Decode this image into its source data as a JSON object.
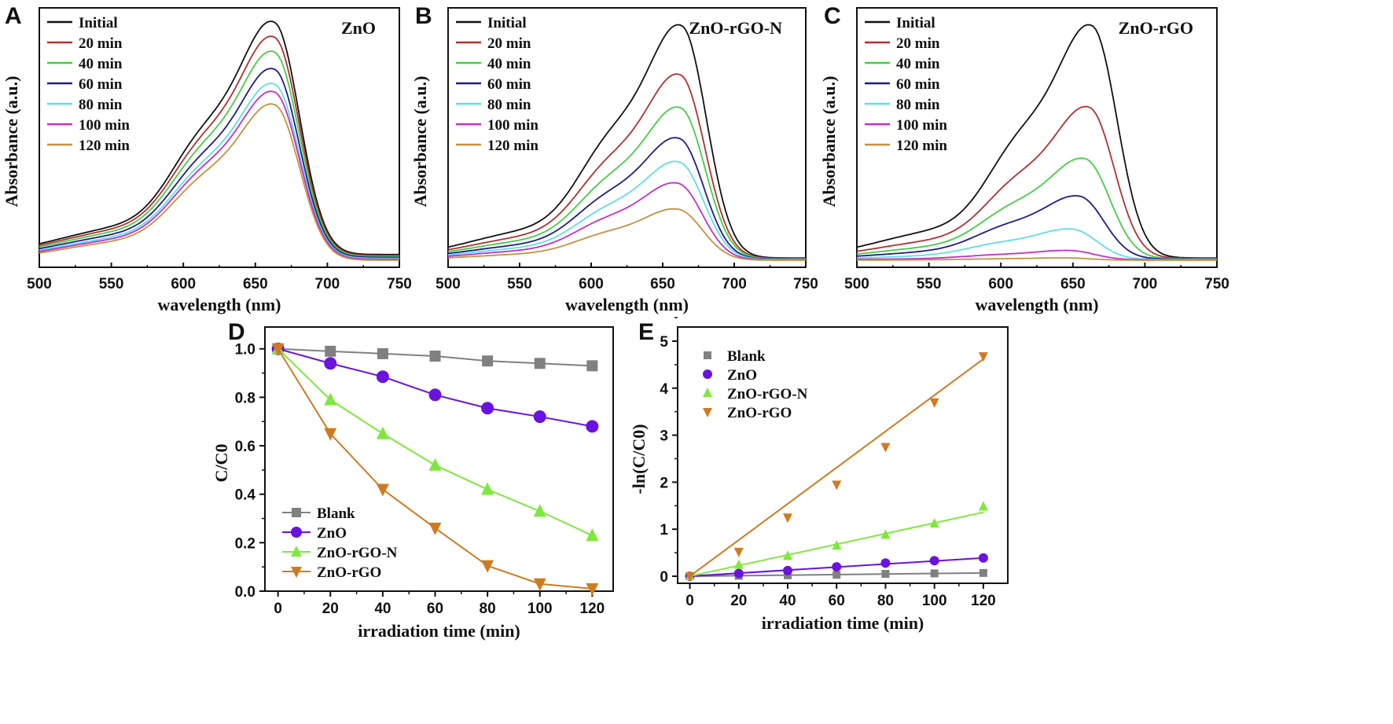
{
  "chart_data": [
    {
      "panel": "A",
      "type": "line",
      "title": "ZnO",
      "xlabel": "wavelength (nm)",
      "ylabel": "Absorbance (a.u.)",
      "xlim": [
        500,
        750
      ],
      "xticks": [
        500,
        550,
        600,
        650,
        700,
        750
      ],
      "ylim": [
        0,
        1.1
      ],
      "legend_position": "top-left",
      "series": [
        {
          "name": "Initial",
          "color": "#111111",
          "peak_absorbance": 1.0,
          "peak_nm": 664
        },
        {
          "name": "20  min",
          "color": "#b03030",
          "peak_absorbance": 0.94,
          "peak_nm": 664
        },
        {
          "name": "40  min",
          "color": "#46cc46",
          "peak_absorbance": 0.88,
          "peak_nm": 664
        },
        {
          "name": "60  min",
          "color": "#1c1c8c",
          "peak_absorbance": 0.81,
          "peak_nm": 664
        },
        {
          "name": "80  min",
          "color": "#5fdde6",
          "peak_absorbance": 0.75,
          "peak_nm": 664
        },
        {
          "name": "100 min",
          "color": "#c030c8",
          "peak_absorbance": 0.72,
          "peak_nm": 664
        },
        {
          "name": "120 min",
          "color": "#c89040",
          "peak_absorbance": 0.67,
          "peak_nm": 664
        }
      ]
    },
    {
      "panel": "B",
      "type": "line",
      "title": "ZnO-rGO-N",
      "xlabel": "wavelength (nm)",
      "ylabel": "Absorbance (a.u.)",
      "xlim": [
        500,
        750
      ],
      "xticks": [
        500,
        550,
        600,
        650,
        700,
        750
      ],
      "ylim": [
        0,
        1.1
      ],
      "legend_position": "top-left",
      "series": [
        {
          "name": "Initial",
          "color": "#111111",
          "peak_absorbance": 1.0,
          "peak_nm": 664
        },
        {
          "name": "20  min",
          "color": "#b03030",
          "peak_absorbance": 0.79,
          "peak_nm": 663
        },
        {
          "name": "40  min",
          "color": "#46cc46",
          "peak_absorbance": 0.65,
          "peak_nm": 663
        },
        {
          "name": "60  min",
          "color": "#1c1c8c",
          "peak_absorbance": 0.52,
          "peak_nm": 662
        },
        {
          "name": "80  min",
          "color": "#5fdde6",
          "peak_absorbance": 0.42,
          "peak_nm": 662
        },
        {
          "name": "100 min",
          "color": "#c030c8",
          "peak_absorbance": 0.33,
          "peak_nm": 661
        },
        {
          "name": "120 min",
          "color": "#c89040",
          "peak_absorbance": 0.22,
          "peak_nm": 661
        }
      ]
    },
    {
      "panel": "C",
      "type": "line",
      "title": "ZnO-rGO",
      "xlabel": "wavelength (nm)",
      "ylabel": "Absorbance (a.u.)",
      "xlim": [
        500,
        750
      ],
      "xticks": [
        500,
        550,
        600,
        650,
        700,
        750
      ],
      "ylim": [
        0,
        1.1
      ],
      "legend_position": "top-left",
      "series": [
        {
          "name": "Initial",
          "color": "#111111",
          "peak_absorbance": 1.0,
          "peak_nm": 664
        },
        {
          "name": "20  min",
          "color": "#b03030",
          "peak_absorbance": 0.65,
          "peak_nm": 662
        },
        {
          "name": "40  min",
          "color": "#46cc46",
          "peak_absorbance": 0.43,
          "peak_nm": 659
        },
        {
          "name": "60  min",
          "color": "#1c1c8c",
          "peak_absorbance": 0.27,
          "peak_nm": 655
        },
        {
          "name": "80  min",
          "color": "#5fdde6",
          "peak_absorbance": 0.13,
          "peak_nm": 650
        },
        {
          "name": "100 min",
          "color": "#c030c8",
          "peak_absorbance": 0.04,
          "peak_nm": 648
        },
        {
          "name": "120 min",
          "color": "#c89040",
          "peak_absorbance": 0.01,
          "peak_nm": 645
        }
      ]
    },
    {
      "panel": "D",
      "type": "line",
      "title": "",
      "xlabel": "irradiation time (min)",
      "ylabel": "C/C0",
      "x": [
        0,
        20,
        40,
        60,
        80,
        100,
        120
      ],
      "xlim": [
        -5,
        128
      ],
      "ylim": [
        0,
        1.09
      ],
      "xticks": [
        0,
        20,
        40,
        60,
        80,
        100,
        120
      ],
      "yticks": [
        "0.0",
        "0.2",
        "0.4",
        "0.6",
        "0.8",
        "1.0"
      ],
      "legend_position": "bottom-left",
      "series": [
        {
          "name": "Blank",
          "color": "#808080",
          "marker": "square",
          "values": [
            1.0,
            0.99,
            0.98,
            0.97,
            0.95,
            0.94,
            0.93
          ]
        },
        {
          "name": "ZnO",
          "color": "#6a12e0",
          "marker": "circle",
          "values": [
            1.0,
            0.94,
            0.885,
            0.81,
            0.755,
            0.72,
            0.68
          ]
        },
        {
          "name": "ZnO-rGO-N",
          "color": "#7ee83e",
          "marker": "triangle-up",
          "values": [
            1.0,
            0.79,
            0.65,
            0.52,
            0.42,
            0.33,
            0.23
          ]
        },
        {
          "name": "ZnO-rGO",
          "color": "#d07a20",
          "marker": "triangle-down",
          "values": [
            1.0,
            0.65,
            0.42,
            0.26,
            0.105,
            0.03,
            0.01
          ]
        }
      ]
    },
    {
      "panel": "E",
      "type": "scatter",
      "title": "",
      "xlabel": "irradiation time (min)",
      "ylabel": "-ln(C/C0)",
      "x": [
        0,
        20,
        40,
        60,
        80,
        100,
        120
      ],
      "xlim": [
        -5,
        130
      ],
      "ylim": [
        -0.15,
        5.3
      ],
      "xticks": [
        0,
        20,
        40,
        60,
        80,
        100,
        120
      ],
      "yticks": [
        "0",
        "1",
        "2",
        "3",
        "4",
        "5"
      ],
      "legend_position": "top-left",
      "fit_lines": true,
      "series": [
        {
          "name": "Blank",
          "color": "#808080",
          "marker": "square",
          "values": [
            0,
            0.01,
            0.02,
            0.03,
            0.05,
            0.06,
            0.07
          ],
          "fit_end": 0.07
        },
        {
          "name": "ZnO",
          "color": "#6a12e0",
          "marker": "circle",
          "values": [
            0,
            0.06,
            0.12,
            0.2,
            0.28,
            0.33,
            0.39
          ],
          "fit_end": 0.39
        },
        {
          "name": "ZnO-rGO-N",
          "color": "#7ee83e",
          "marker": "triangle-up",
          "values": [
            0,
            0.24,
            0.43,
            0.65,
            0.88,
            1.12,
            1.48
          ],
          "fit_end": 1.36
        },
        {
          "name": "ZnO-rGO",
          "color": "#d07a20",
          "marker": "triangle-down",
          "values": [
            0,
            0.52,
            1.25,
            1.95,
            2.75,
            3.7,
            4.68
          ],
          "fit_end": 4.62
        }
      ]
    }
  ]
}
